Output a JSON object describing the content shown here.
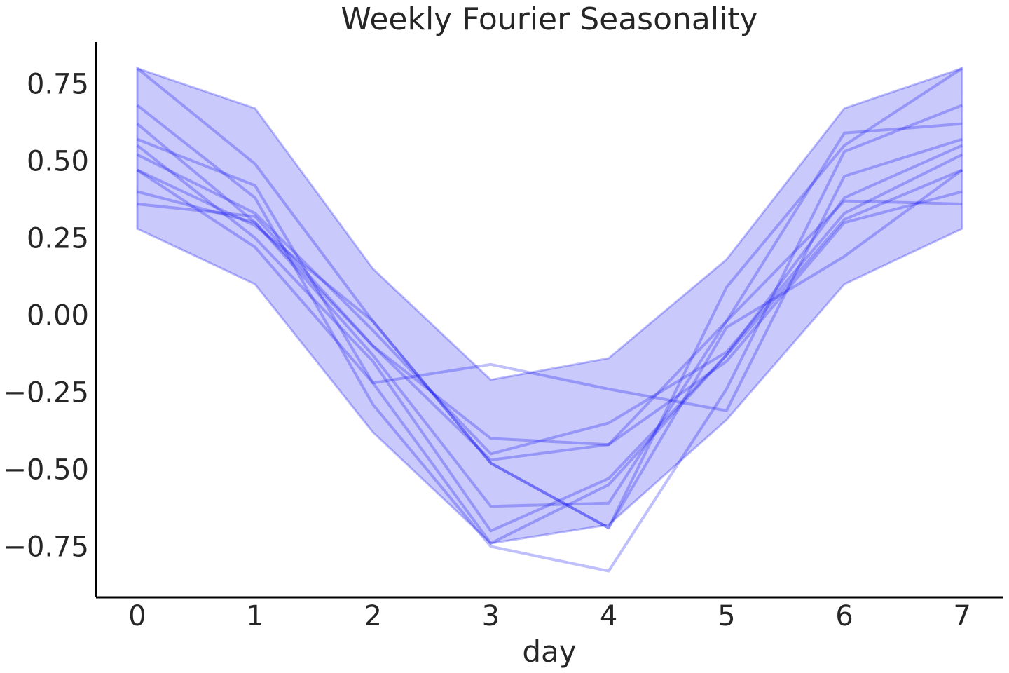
{
  "chart_data": {
    "type": "line",
    "title": "Weekly Fourier Seasonality",
    "xlabel": "day",
    "ylabel": "",
    "x": [
      0,
      1,
      2,
      3,
      4,
      5,
      6,
      7
    ],
    "x_tick_labels": [
      "0",
      "1",
      "2",
      "3",
      "4",
      "5",
      "6",
      "7"
    ],
    "y_ticks": [
      0.75,
      0.5,
      0.25,
      0.0,
      -0.25,
      -0.5,
      -0.75
    ],
    "y_tick_labels": [
      "0.75",
      "0.50",
      "0.25",
      "0.00",
      "−0.25",
      "−0.50",
      "−0.75"
    ],
    "xlim": [
      -0.35,
      7.35
    ],
    "ylim": [
      -0.915,
      0.885
    ],
    "grid": false,
    "colors": {
      "series": "#0000ee",
      "band": "#0000ee"
    },
    "band": {
      "upper": [
        0.8,
        0.67,
        0.15,
        -0.21,
        -0.14,
        0.18,
        0.67,
        0.8
      ],
      "lower": [
        0.28,
        0.1,
        -0.38,
        -0.74,
        -0.68,
        -0.34,
        0.1,
        0.28
      ]
    },
    "series": [
      {
        "values": [
          0.8,
          0.49,
          -0.02,
          -0.48,
          -0.69,
          0.09,
          0.55,
          0.8
        ]
      },
      {
        "values": [
          0.68,
          0.38,
          -0.29,
          -0.75,
          -0.83,
          -0.24,
          0.53,
          0.68
        ]
      },
      {
        "values": [
          0.62,
          0.3,
          -0.13,
          -0.62,
          -0.61,
          -0.02,
          0.59,
          0.62
        ]
      },
      {
        "values": [
          0.57,
          0.42,
          -0.22,
          -0.16,
          -0.24,
          -0.31,
          0.45,
          0.57
        ]
      },
      {
        "values": [
          0.55,
          0.25,
          -0.15,
          -0.7,
          -0.53,
          -0.13,
          0.38,
          0.55
        ]
      },
      {
        "values": [
          0.52,
          0.33,
          -0.05,
          -0.45,
          -0.35,
          -0.12,
          0.33,
          0.52
        ]
      },
      {
        "values": [
          0.47,
          0.29,
          -0.02,
          -0.48,
          -0.69,
          -0.04,
          0.19,
          0.47
        ]
      },
      {
        "values": [
          0.4,
          0.3,
          -0.1,
          -0.4,
          -0.42,
          -0.15,
          0.3,
          0.4
        ]
      },
      {
        "values": [
          0.36,
          0.32,
          -0.1,
          -0.47,
          -0.42,
          -0.02,
          0.37,
          0.36
        ]
      },
      {
        "values": [
          0.47,
          0.22,
          -0.22,
          -0.74,
          -0.55,
          -0.13,
          0.31,
          0.47
        ]
      }
    ]
  }
}
